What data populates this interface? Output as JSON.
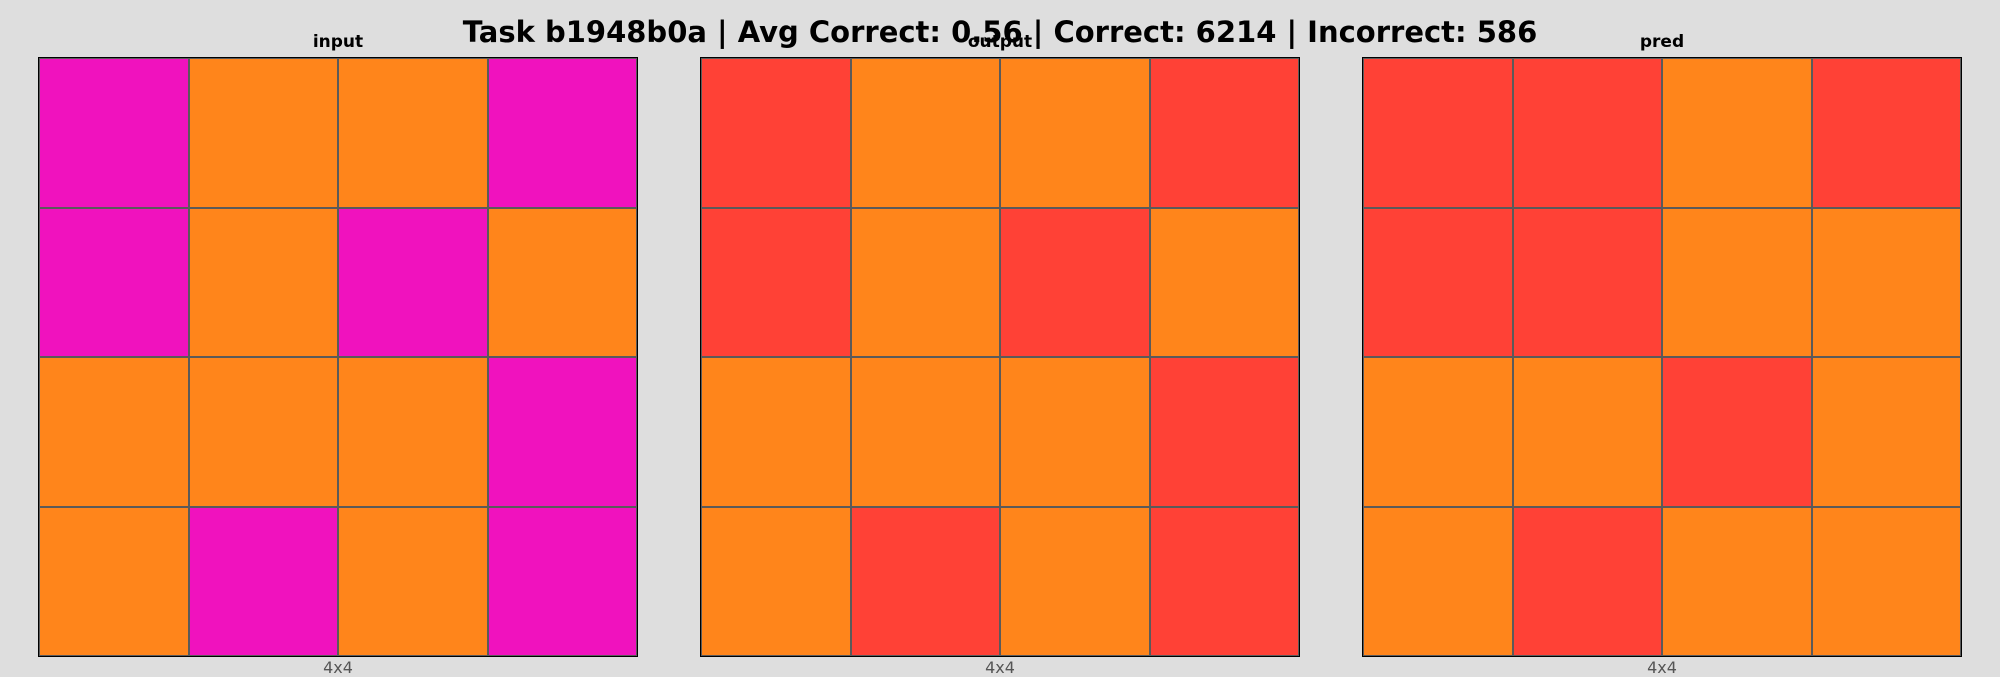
{
  "title": "Task b1948b0a | Avg Correct: 0.56 | Correct: 6214 | Incorrect: 586",
  "palette": {
    "6": "#f012be",
    "7": "#ff851b",
    "2": "#ff4136"
  },
  "panels": [
    {
      "label": "input",
      "dims": "4x4",
      "grid": [
        [
          6,
          7,
          7,
          6
        ],
        [
          6,
          7,
          6,
          7
        ],
        [
          7,
          7,
          7,
          6
        ],
        [
          7,
          6,
          7,
          6
        ]
      ]
    },
    {
      "label": "output",
      "dims": "4x4",
      "grid": [
        [
          2,
          7,
          7,
          2
        ],
        [
          2,
          7,
          2,
          7
        ],
        [
          7,
          7,
          7,
          2
        ],
        [
          7,
          2,
          7,
          2
        ]
      ]
    },
    {
      "label": "pred",
      "dims": "4x4",
      "grid": [
        [
          2,
          2,
          7,
          2
        ],
        [
          2,
          2,
          7,
          7
        ],
        [
          7,
          7,
          2,
          7
        ],
        [
          7,
          2,
          7,
          7
        ]
      ]
    }
  ]
}
